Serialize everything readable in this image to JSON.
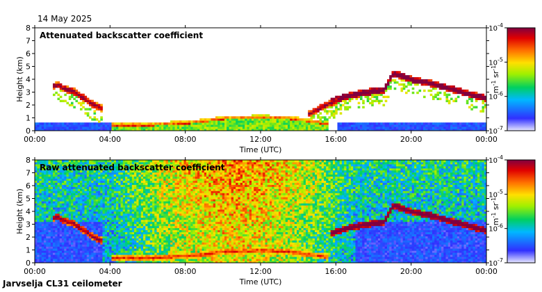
{
  "date": "14 May 2025",
  "site": "Jarvselja CL31 ceilometer",
  "chart_data": [
    {
      "type": "heatmap",
      "title": "Attenuated backscatter coefficient",
      "xlabel": "Time (UTC)",
      "ylabel": "Height (km)",
      "x_ticks": [
        "00:00",
        "04:00",
        "08:00",
        "12:00",
        "16:00",
        "20:00",
        "00:00"
      ],
      "x_range_hours": [
        0,
        24
      ],
      "y_ticks": [
        0,
        1,
        2,
        3,
        4,
        5,
        6,
        7,
        8
      ],
      "ylim": [
        0,
        8
      ],
      "colorbar": {
        "scale": "log",
        "range": [
          1e-07,
          0.0001
        ],
        "ticks": [
          {
            "base": "10",
            "exp": "-4"
          },
          {
            "base": "10",
            "exp": "-5"
          },
          {
            "base": "10",
            "exp": "-6"
          },
          {
            "base": "10",
            "exp": "-7"
          }
        ],
        "unit": {
          "m": "m",
          "m_exp": "-1",
          "sr": "sr",
          "sr_exp": "-1"
        }
      },
      "features": [
        {
          "name": "cloud-layer-night",
          "t": [
            0.9,
            1.2,
            1.5,
            2.0,
            2.5,
            3.0,
            3.6
          ],
          "h": [
            3.4,
            3.5,
            3.2,
            3.0,
            2.5,
            2.0,
            1.6
          ],
          "level": 0.7
        },
        {
          "name": "cloud-layer-evening",
          "t": [
            15.6,
            16.5,
            17.5,
            18.5,
            19.0,
            20.0,
            21.0,
            22.0,
            23.0,
            24.0
          ],
          "h": [
            2.2,
            2.6,
            2.9,
            3.1,
            4.4,
            3.9,
            3.6,
            3.2,
            2.8,
            2.4
          ],
          "level": 0.8
        },
        {
          "name": "boundary-layer",
          "t": [
            4.0,
            6.0,
            8.5,
            10.0,
            12.0,
            13.5,
            14.5,
            15.5
          ],
          "h": [
            0.3,
            0.3,
            0.5,
            0.8,
            0.9,
            0.8,
            0.6,
            0.4
          ],
          "level": 0.55
        },
        {
          "name": "low-cloud-afternoon",
          "t": [
            14.5,
            15.0,
            15.5,
            16.0
          ],
          "h": [
            1.2,
            1.6,
            2.0,
            2.2
          ],
          "level": 0.7
        }
      ]
    },
    {
      "type": "heatmap",
      "title": "Raw attenuated backscatter coefficient",
      "xlabel": "Time (UTC)",
      "ylabel": "Height (km)",
      "x_ticks": [
        "00:00",
        "04:00",
        "08:00",
        "12:00",
        "16:00",
        "20:00",
        "00:00"
      ],
      "x_range_hours": [
        0,
        24
      ],
      "y_ticks": [
        0,
        1,
        2,
        3,
        4,
        5,
        6,
        7,
        8
      ],
      "ylim": [
        0,
        8
      ],
      "colorbar": {
        "scale": "log",
        "range": [
          1e-07,
          0.0001
        ],
        "ticks": [
          {
            "base": "10",
            "exp": "-4"
          },
          {
            "base": "10",
            "exp": "-5"
          },
          {
            "base": "10",
            "exp": "-6"
          },
          {
            "base": "10",
            "exp": "-7"
          }
        ],
        "unit": {
          "m": "m",
          "m_exp": "-1",
          "sr": "sr",
          "sr_exp": "-1"
        }
      },
      "features": [
        {
          "name": "cloud-layer-night",
          "t": [
            0.9,
            1.2,
            1.5,
            2.0,
            2.5,
            3.0,
            3.6
          ],
          "h": [
            3.4,
            3.5,
            3.2,
            3.0,
            2.5,
            2.0,
            1.6
          ],
          "level": 0.7
        },
        {
          "name": "cloud-layer-evening",
          "t": [
            15.6,
            16.5,
            17.5,
            18.5,
            19.0,
            20.0,
            21.0,
            22.0,
            23.0,
            24.0
          ],
          "h": [
            2.2,
            2.6,
            2.9,
            3.1,
            4.4,
            3.9,
            3.6,
            3.2,
            2.8,
            2.4
          ],
          "level": 0.8
        },
        {
          "name": "boundary-layer",
          "t": [
            4.0,
            6.0,
            8.5,
            10.0,
            12.0,
            13.5,
            14.5,
            15.5
          ],
          "h": [
            0.3,
            0.3,
            0.5,
            0.8,
            0.9,
            0.8,
            0.6,
            0.4
          ],
          "level": 0.55
        }
      ]
    }
  ]
}
